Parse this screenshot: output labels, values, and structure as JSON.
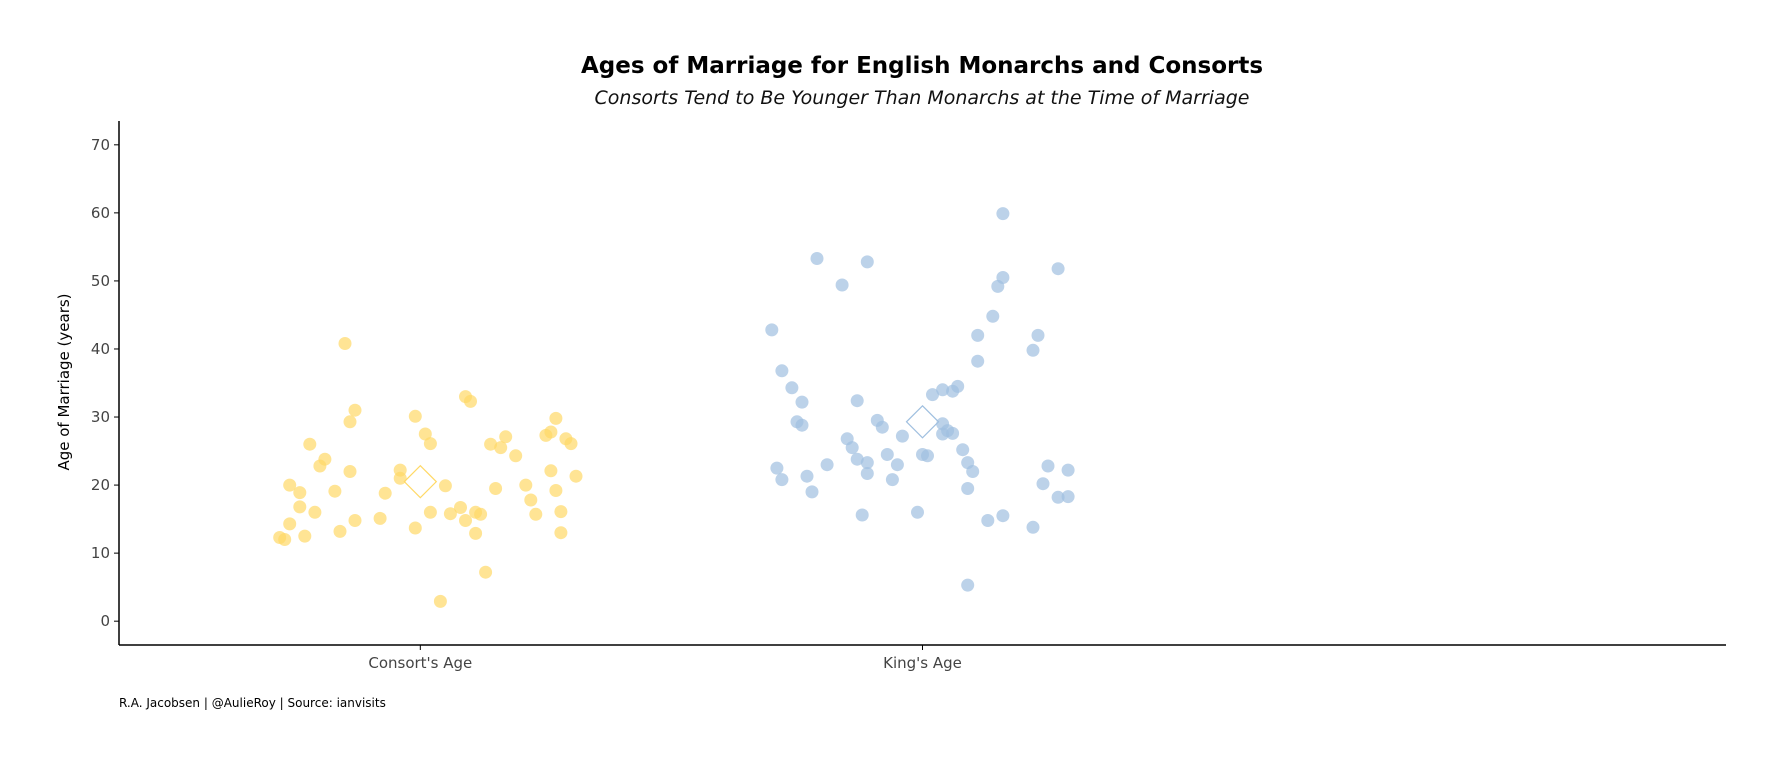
{
  "chart_data": {
    "type": "scatter",
    "title": "Ages of Marriage for English Monarchs and Consorts",
    "subtitle": "Consorts Tend to Be Younger Than Monarchs at the Time of Marriage",
    "ylabel": "Age of Marriage (years)",
    "xlabel": "",
    "caption": "R.A. Jacobsen | @AulieRoy | Source: ianvisits",
    "categories": [
      "Consort's Age",
      "King's Age"
    ],
    "ylim": [
      -3.5,
      73.5
    ],
    "yticks": [
      0,
      10,
      20,
      30,
      40,
      50,
      60,
      70
    ],
    "grid": false,
    "legend": "none",
    "series": [
      {
        "category": "Consort's Age",
        "color": "#FFD966",
        "mean": 20.5,
        "points": [
          {
            "jitter": -0.28,
            "y": 12.3
          },
          {
            "jitter": -0.27,
            "y": 12.0
          },
          {
            "jitter": -0.26,
            "y": 14.3
          },
          {
            "jitter": -0.26,
            "y": 20.0
          },
          {
            "jitter": -0.24,
            "y": 16.8
          },
          {
            "jitter": -0.24,
            "y": 18.9
          },
          {
            "jitter": -0.23,
            "y": 12.5
          },
          {
            "jitter": -0.22,
            "y": 26.0
          },
          {
            "jitter": -0.21,
            "y": 16.0
          },
          {
            "jitter": -0.2,
            "y": 22.8
          },
          {
            "jitter": -0.19,
            "y": 23.8
          },
          {
            "jitter": -0.17,
            "y": 19.1
          },
          {
            "jitter": -0.16,
            "y": 13.2
          },
          {
            "jitter": -0.15,
            "y": 40.8
          },
          {
            "jitter": -0.14,
            "y": 29.3
          },
          {
            "jitter": -0.14,
            "y": 22.0
          },
          {
            "jitter": -0.13,
            "y": 31.0
          },
          {
            "jitter": -0.13,
            "y": 14.8
          },
          {
            "jitter": -0.08,
            "y": 15.1
          },
          {
            "jitter": -0.07,
            "y": 18.8
          },
          {
            "jitter": -0.04,
            "y": 21.0
          },
          {
            "jitter": -0.04,
            "y": 22.2
          },
          {
            "jitter": -0.01,
            "y": 30.1
          },
          {
            "jitter": -0.01,
            "y": 13.7
          },
          {
            "jitter": 0.01,
            "y": 27.5
          },
          {
            "jitter": 0.02,
            "y": 26.1
          },
          {
            "jitter": 0.02,
            "y": 16.0
          },
          {
            "jitter": 0.04,
            "y": 2.9
          },
          {
            "jitter": 0.05,
            "y": 19.9
          },
          {
            "jitter": 0.06,
            "y": 15.8
          },
          {
            "jitter": 0.08,
            "y": 16.7
          },
          {
            "jitter": 0.09,
            "y": 14.8
          },
          {
            "jitter": 0.09,
            "y": 33.0
          },
          {
            "jitter": 0.1,
            "y": 32.3
          },
          {
            "jitter": 0.11,
            "y": 16.0
          },
          {
            "jitter": 0.11,
            "y": 12.9
          },
          {
            "jitter": 0.12,
            "y": 15.7
          },
          {
            "jitter": 0.13,
            "y": 7.2
          },
          {
            "jitter": 0.14,
            "y": 26.0
          },
          {
            "jitter": 0.15,
            "y": 19.5
          },
          {
            "jitter": 0.16,
            "y": 25.5
          },
          {
            "jitter": 0.17,
            "y": 27.1
          },
          {
            "jitter": 0.19,
            "y": 24.3
          },
          {
            "jitter": 0.21,
            "y": 20.0
          },
          {
            "jitter": 0.22,
            "y": 17.8
          },
          {
            "jitter": 0.23,
            "y": 15.7
          },
          {
            "jitter": 0.25,
            "y": 27.3
          },
          {
            "jitter": 0.26,
            "y": 27.8
          },
          {
            "jitter": 0.26,
            "y": 22.1
          },
          {
            "jitter": 0.27,
            "y": 19.2
          },
          {
            "jitter": 0.27,
            "y": 29.8
          },
          {
            "jitter": 0.28,
            "y": 13.0
          },
          {
            "jitter": 0.28,
            "y": 16.1
          },
          {
            "jitter": 0.29,
            "y": 26.8
          },
          {
            "jitter": 0.3,
            "y": 26.1
          },
          {
            "jitter": 0.31,
            "y": 21.3
          }
        ]
      },
      {
        "category": "King's Age",
        "color": "#9FBFDF",
        "mean": 29.3,
        "points": [
          {
            "jitter": -0.3,
            "y": 42.8
          },
          {
            "jitter": -0.29,
            "y": 22.5
          },
          {
            "jitter": -0.28,
            "y": 36.8
          },
          {
            "jitter": -0.28,
            "y": 20.8
          },
          {
            "jitter": -0.26,
            "y": 34.3
          },
          {
            "jitter": -0.25,
            "y": 29.3
          },
          {
            "jitter": -0.24,
            "y": 28.8
          },
          {
            "jitter": -0.24,
            "y": 32.2
          },
          {
            "jitter": -0.23,
            "y": 21.3
          },
          {
            "jitter": -0.22,
            "y": 19.0
          },
          {
            "jitter": -0.21,
            "y": 53.3
          },
          {
            "jitter": -0.19,
            "y": 23.0
          },
          {
            "jitter": -0.16,
            "y": 49.4
          },
          {
            "jitter": -0.15,
            "y": 26.8
          },
          {
            "jitter": -0.14,
            "y": 25.5
          },
          {
            "jitter": -0.13,
            "y": 23.8
          },
          {
            "jitter": -0.13,
            "y": 32.4
          },
          {
            "jitter": -0.12,
            "y": 15.6
          },
          {
            "jitter": -0.11,
            "y": 21.7
          },
          {
            "jitter": -0.11,
            "y": 23.3
          },
          {
            "jitter": -0.11,
            "y": 52.8
          },
          {
            "jitter": -0.09,
            "y": 29.5
          },
          {
            "jitter": -0.08,
            "y": 28.5
          },
          {
            "jitter": -0.07,
            "y": 24.5
          },
          {
            "jitter": -0.06,
            "y": 20.8
          },
          {
            "jitter": -0.05,
            "y": 23.0
          },
          {
            "jitter": -0.04,
            "y": 27.2
          },
          {
            "jitter": -0.01,
            "y": 16.0
          },
          {
            "jitter": 0.0,
            "y": 24.5
          },
          {
            "jitter": 0.01,
            "y": 24.3
          },
          {
            "jitter": 0.02,
            "y": 33.3
          },
          {
            "jitter": 0.04,
            "y": 34.0
          },
          {
            "jitter": 0.04,
            "y": 29.0
          },
          {
            "jitter": 0.04,
            "y": 27.5
          },
          {
            "jitter": 0.05,
            "y": 28.0
          },
          {
            "jitter": 0.06,
            "y": 33.8
          },
          {
            "jitter": 0.07,
            "y": 34.5
          },
          {
            "jitter": 0.06,
            "y": 27.6
          },
          {
            "jitter": 0.08,
            "y": 25.2
          },
          {
            "jitter": 0.09,
            "y": 19.5
          },
          {
            "jitter": 0.09,
            "y": 23.3
          },
          {
            "jitter": 0.09,
            "y": 5.3
          },
          {
            "jitter": 0.1,
            "y": 22.0
          },
          {
            "jitter": 0.11,
            "y": 42.0
          },
          {
            "jitter": 0.11,
            "y": 38.2
          },
          {
            "jitter": 0.13,
            "y": 14.8
          },
          {
            "jitter": 0.14,
            "y": 44.8
          },
          {
            "jitter": 0.15,
            "y": 49.2
          },
          {
            "jitter": 0.16,
            "y": 50.5
          },
          {
            "jitter": 0.16,
            "y": 15.5
          },
          {
            "jitter": 0.16,
            "y": 59.9
          },
          {
            "jitter": 0.22,
            "y": 13.8
          },
          {
            "jitter": 0.22,
            "y": 39.8
          },
          {
            "jitter": 0.23,
            "y": 42.0
          },
          {
            "jitter": 0.24,
            "y": 20.2
          },
          {
            "jitter": 0.25,
            "y": 22.8
          },
          {
            "jitter": 0.27,
            "y": 18.2
          },
          {
            "jitter": 0.27,
            "y": 51.8
          },
          {
            "jitter": 0.29,
            "y": 18.3
          },
          {
            "jitter": 0.29,
            "y": 22.2
          }
        ]
      }
    ]
  }
}
